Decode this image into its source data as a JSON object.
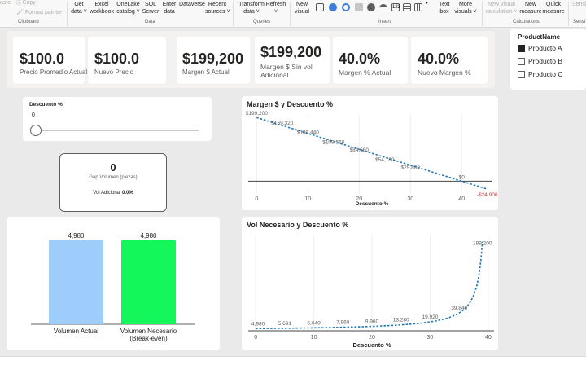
{
  "ribbon": {
    "clipboard": {
      "paste": "aste",
      "copy": "Copy",
      "format_painter": "Format painter",
      "group": "Clipboard"
    },
    "data": {
      "get_data": "Get\ndata ˅",
      "excel": "Excel\nworkbook",
      "onelake": "OneLake\ncatalog ˅",
      "sql": "SQL\nServer",
      "enter": "Enter\ndata",
      "dataverse": "Dataverse",
      "recent": "Recent\nsources ˅",
      "group": "Data"
    },
    "queries": {
      "transform": "Transform\ndata ˅",
      "refresh": "Refresh\n˅",
      "group": "Queries"
    },
    "insert": {
      "new_visual": "New\nvisual",
      "text_box": "Text\nbox",
      "more_visuals": "More\nvisuals ˅",
      "group": "Insert"
    },
    "calculations": {
      "new_visual_calc": "New visual\ncalculation ˅",
      "new_measure": "New\nmeasure",
      "quick_measure": "Quick\nmeasure",
      "group": "Calculations"
    },
    "sensitivity": {
      "label": "Sensi",
      "group": "Sensi"
    }
  },
  "kpis": [
    {
      "value": "$100.0",
      "label": "Precio Promedio Actual"
    },
    {
      "value": "$100.0",
      "label": "Nuevo Precio"
    },
    {
      "value": "$199,200",
      "label": "Margen $ Actual"
    },
    {
      "value": "$199,200",
      "label": "Margen $ Sin vol Adicional"
    },
    {
      "value": "40.0%",
      "label": "Margen % Actual"
    },
    {
      "value": "40.0%",
      "label": "Nuevo Margen %"
    }
  ],
  "product_slicer": {
    "title": "ProductName",
    "items": [
      {
        "label": "Producto A",
        "checked": true
      },
      {
        "label": "Producto B",
        "checked": false
      },
      {
        "label": "Producto C",
        "checked": false
      }
    ]
  },
  "discount_slicer": {
    "title": "Descuento %",
    "value": "0",
    "slider_fraction": 0
  },
  "gap_card": {
    "value": "0",
    "label": "Gap Volumen (piezas)",
    "vol_label": "Vol Adicional",
    "vol_value": "0.0%"
  },
  "colors": {
    "accent_blue": "#1f77b4",
    "bar_actual": "#9ecdfb",
    "bar_needed": "#14f75a",
    "negative": "#d13438"
  },
  "chart_data": [
    {
      "type": "bar",
      "title": "",
      "categories": [
        "Volumen Actual",
        "Volumen Necesario\n(Break-even)"
      ],
      "values": [
        4980,
        4980
      ],
      "data_labels": [
        "4,980",
        "4,980"
      ],
      "ylim": [
        0,
        5700
      ]
    },
    {
      "type": "line",
      "title": "Margen $ y Descuento %",
      "xlabel": "Descuento %",
      "ylabel": "",
      "x": [
        0,
        5,
        10,
        15,
        20,
        25,
        30,
        35,
        40,
        45
      ],
      "values": [
        199200,
        169320,
        139440,
        109560,
        84660,
        54780,
        29880,
        0,
        0,
        -24900
      ],
      "series": [
        {
          "name": "",
          "points": [
            [
              0,
              199200
            ],
            [
              45,
              -24900
            ]
          ],
          "data_labels": [
            {
              "x": 0,
              "y": 199200,
              "label": "$199,200"
            },
            {
              "x": 5,
              "y": 169320,
              "label": "$169,320"
            },
            {
              "x": 10,
              "y": 139440,
              "label": "$139,440"
            },
            {
              "x": 15,
              "y": 109560,
              "label": "$109,560"
            },
            {
              "x": 20,
              "y": 84660,
              "label": "$84,660"
            },
            {
              "x": 25,
              "y": 54780,
              "label": "$54,780"
            },
            {
              "x": 30,
              "y": 29880,
              "label": "$29,880"
            },
            {
              "x": 40,
              "y": 0,
              "label": "$0"
            },
            {
              "x": 45,
              "y": -24900,
              "label": "-$24,900"
            }
          ]
        }
      ],
      "xticks": [
        0,
        10,
        20,
        30,
        40
      ],
      "xlim": [
        -1,
        46
      ],
      "ylim": [
        -40000,
        210000
      ],
      "grid": true
    },
    {
      "type": "line",
      "title": "Vol Necesario y Descuento %",
      "xlabel": "Descuento %",
      "ylabel": "",
      "data_labels": [
        {
          "x": 0,
          "y": 4980,
          "label": "4,980"
        },
        {
          "x": 5,
          "y": 5691,
          "label": "5,691"
        },
        {
          "x": 10,
          "y": 6640,
          "label": "6,640"
        },
        {
          "x": 15,
          "y": 7968,
          "label": "7,968"
        },
        {
          "x": 20,
          "y": 9960,
          "label": "9,960"
        },
        {
          "x": 25,
          "y": 13280,
          "label": "13,280"
        },
        {
          "x": 30,
          "y": 19920,
          "label": "19,920"
        },
        {
          "x": 35,
          "y": 39840,
          "label": "39,840"
        },
        {
          "x": 39,
          "y": 199200,
          "label": "199,200"
        }
      ],
      "xticks": [
        0,
        10,
        20,
        30,
        40
      ],
      "xlim": [
        -1,
        41
      ],
      "ylim": [
        0,
        215000
      ],
      "grid": true
    }
  ]
}
